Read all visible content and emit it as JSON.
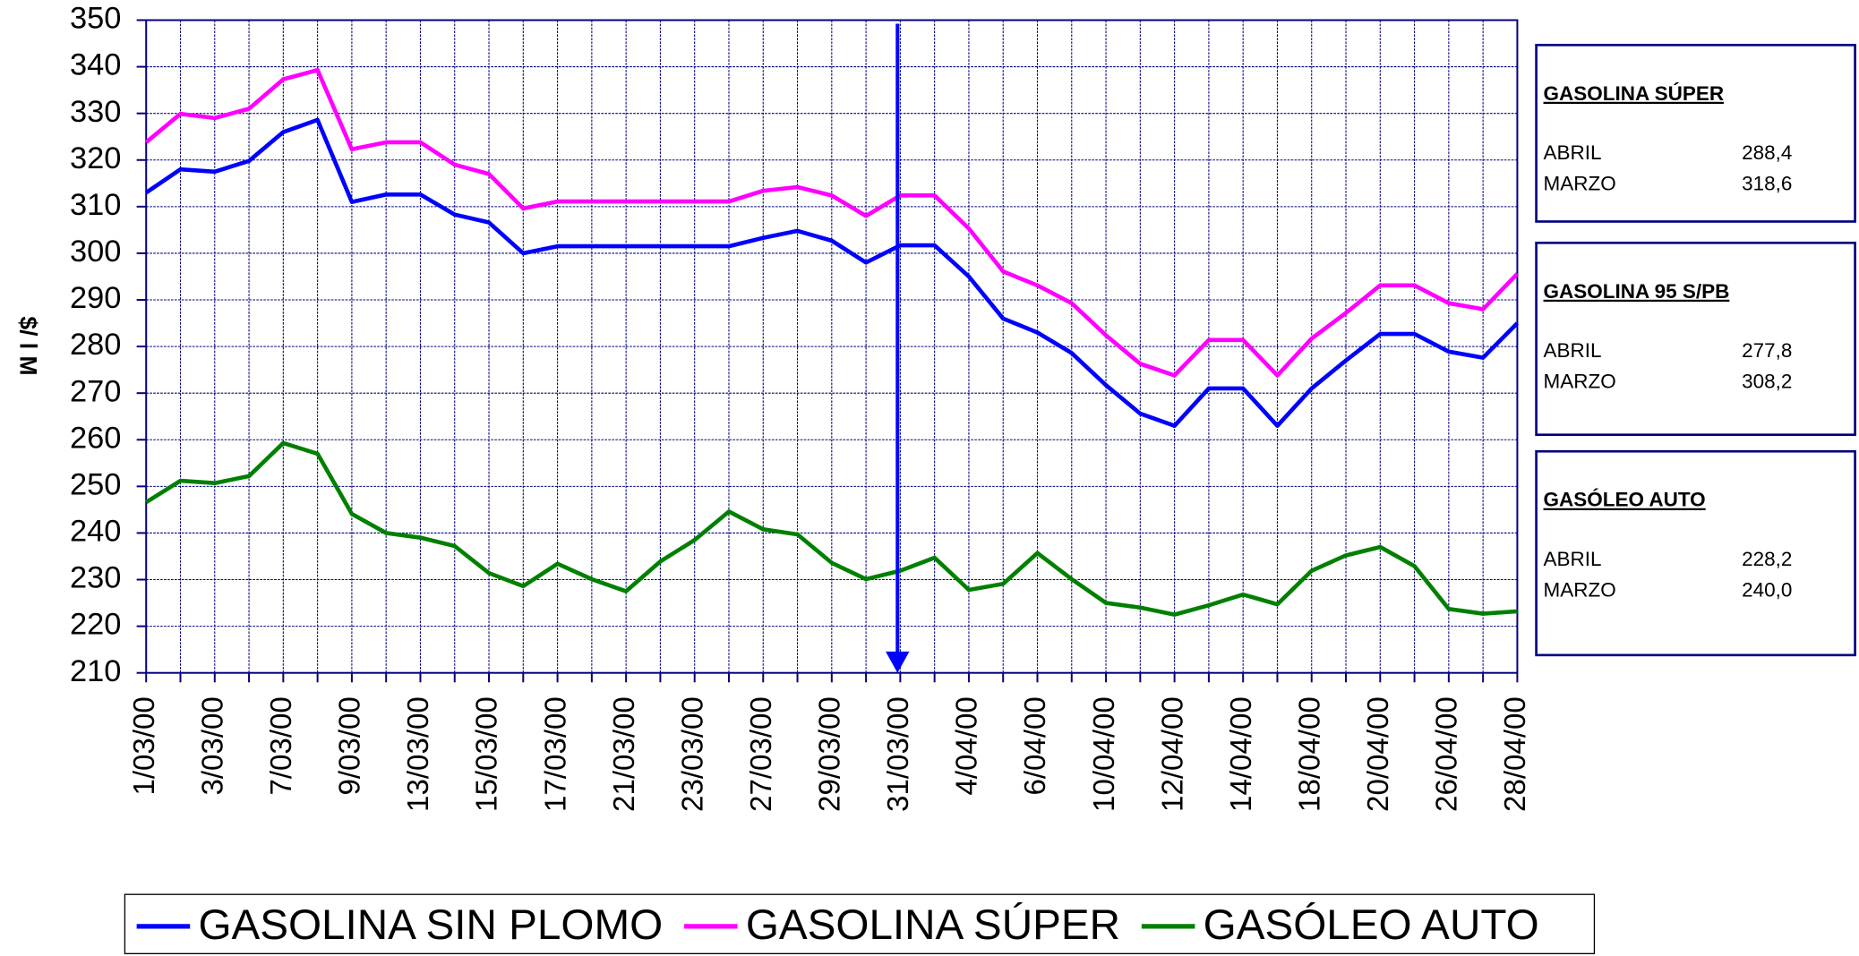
{
  "chart_data": {
    "type": "line",
    "y_label": "$/ l M",
    "categories": [
      "1/03/00",
      null,
      "3/03/00",
      null,
      "7/03/00",
      null,
      "9/03/00",
      null,
      "13/03/00",
      null,
      "15/03/00",
      null,
      "17/03/00",
      null,
      "21/03/00",
      null,
      "23/03/00",
      null,
      "27/03/00",
      null,
      "29/03/00",
      null,
      "31/03/00",
      null,
      "4/04/00",
      null,
      "6/04/00",
      null,
      "10/04/00",
      null,
      "12/04/00",
      null,
      "14/04/00",
      null,
      "18/04/00",
      null,
      "20/04/00",
      null,
      "26/04/00",
      null,
      "28/04/00"
    ],
    "series": [
      {
        "name": "GASOLINA SIN PLOMO",
        "color": "#0000ff",
        "values": [
          313,
          318,
          317.5,
          319.8,
          326,
          328.6,
          311,
          312.6,
          312.6,
          308.3,
          306.6,
          300,
          301.5,
          301.5,
          301.5,
          301.5,
          301.5,
          301.5,
          303.3,
          304.8,
          302.7,
          298,
          301.7,
          301.7,
          295,
          286,
          283,
          278.6,
          271.7,
          265.6,
          263,
          271,
          271,
          263,
          271,
          277,
          282.7,
          282.7,
          278.9,
          277.6,
          285
        ]
      },
      {
        "name": "GASOLINA SÚPER",
        "color": "#ff00ff",
        "values": [
          323.8,
          329.9,
          329,
          331,
          337.3,
          339.3,
          322.3,
          323.8,
          323.8,
          319,
          317,
          309.6,
          311.1,
          311.1,
          311.1,
          311.1,
          311.1,
          311.1,
          313.4,
          314.2,
          312.4,
          308,
          312.4,
          312.4,
          305.3,
          296.1,
          293.1,
          289.3,
          282.4,
          276.3,
          273.8,
          281.4,
          281.4,
          273.8,
          281.7,
          287.2,
          293.1,
          293.1,
          289.3,
          288,
          295.6
        ]
      },
      {
        "name": "GASÓLEO AUTO",
        "color": "#008000",
        "values": [
          246.6,
          251.2,
          250.7,
          252.2,
          259.3,
          257,
          244.1,
          240,
          239,
          237.2,
          231.4,
          228.6,
          233.4,
          230.1,
          227.5,
          233.9,
          238.5,
          244.6,
          240.8,
          239.7,
          233.6,
          230.1,
          231.9,
          234.7,
          227.8,
          229.1,
          235.7,
          230.1,
          225,
          224,
          222.5,
          224.5,
          226.8,
          224.7,
          231.9,
          235.2,
          237,
          232.9,
          223.7,
          222.7,
          223.2
        ]
      }
    ],
    "ylim": [
      210,
      350
    ],
    "yticks": [
      210,
      220,
      230,
      240,
      250,
      260,
      270,
      280,
      290,
      300,
      310,
      320,
      330,
      340,
      350
    ],
    "grid": true,
    "legend": "bottom"
  },
  "panels": [
    {
      "title": "GASOLINA SÚPER",
      "rows": [
        [
          "ABRIL",
          "288,4"
        ],
        [
          "MARZO",
          "318,6"
        ]
      ]
    },
    {
      "title": "GASOLINA  95 S/PB",
      "rows": [
        [
          "ABRIL",
          "277,8"
        ],
        [
          "MARZO",
          "308,2"
        ]
      ]
    },
    {
      "title": "GASÓLEO  AUTO",
      "rows": [
        [
          "ABRIL",
          "228,2"
        ],
        [
          "MARZO",
          "240,0"
        ]
      ]
    }
  ]
}
